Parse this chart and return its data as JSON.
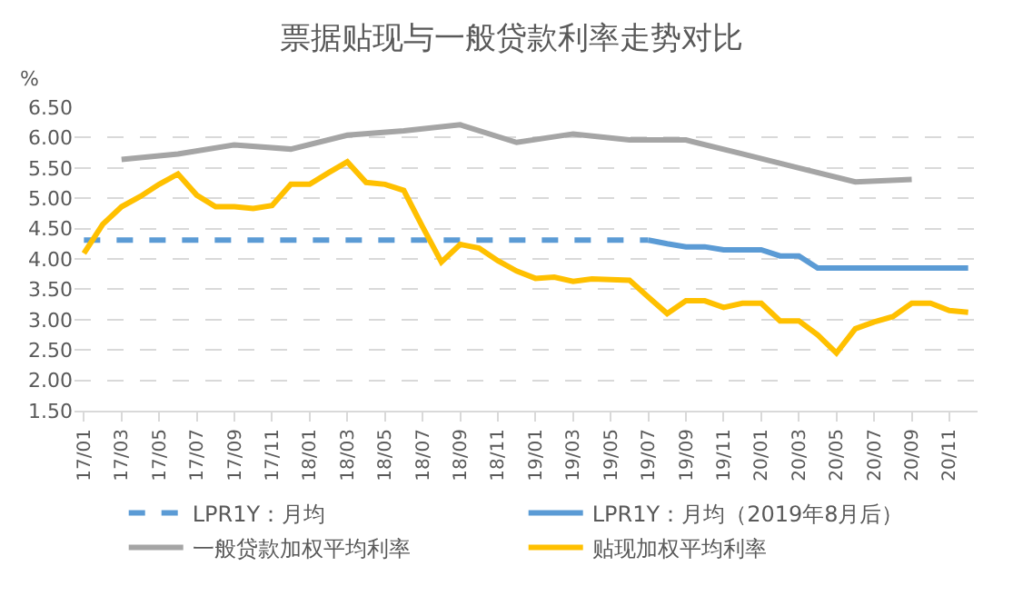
{
  "chart_data": {
    "type": "line",
    "title": "票据贴现与一般贷款利率走势对比",
    "ylabel": "%",
    "categories": [
      "17/01",
      null,
      "17/03",
      null,
      "17/05",
      null,
      "17/07",
      null,
      "17/09",
      null,
      "17/11",
      null,
      "18/01",
      null,
      "18/03",
      null,
      "18/05",
      null,
      "18/07",
      null,
      "18/09",
      null,
      "18/11",
      null,
      "19/01",
      null,
      "19/03",
      null,
      "19/05",
      null,
      "19/07",
      null,
      "19/09",
      null,
      "19/11",
      null,
      "20/01",
      null,
      "20/03",
      null,
      "20/05",
      null,
      "20/07",
      null,
      "20/09",
      null,
      "20/11",
      null
    ],
    "series": [
      {
        "name": "LPR1Y：月均",
        "color": "#5b9bd5",
        "line_style": "dashed",
        "values": [
          4.31,
          4.31,
          4.31,
          4.31,
          4.31,
          4.31,
          4.31,
          4.31,
          4.31,
          4.31,
          4.31,
          4.31,
          4.31,
          4.31,
          4.31,
          4.31,
          4.31,
          4.31,
          4.31,
          4.31,
          4.31,
          4.31,
          4.31,
          4.31,
          4.31,
          4.31,
          4.31,
          4.31,
          4.31,
          4.31,
          4.31,
          null,
          null,
          null,
          null,
          null,
          null,
          null,
          null,
          null,
          null,
          null,
          null,
          null,
          null,
          null,
          null,
          null
        ]
      },
      {
        "name": "LPR1Y：月均（2019年8月后）",
        "color": "#5b9bd5",
        "line_style": "solid",
        "values": [
          null,
          null,
          null,
          null,
          null,
          null,
          null,
          null,
          null,
          null,
          null,
          null,
          null,
          null,
          null,
          null,
          null,
          null,
          null,
          null,
          null,
          null,
          null,
          null,
          null,
          null,
          null,
          null,
          null,
          null,
          4.31,
          4.25,
          4.2,
          4.2,
          4.15,
          4.15,
          4.15,
          4.05,
          4.05,
          3.85,
          3.85,
          3.85,
          3.85,
          3.85,
          3.85,
          3.85,
          3.85,
          3.85
        ]
      },
      {
        "name": "一般贷款加权平均利率",
        "color": "#a5a5a5",
        "line_style": "solid",
        "values": [
          null,
          null,
          5.64,
          null,
          null,
          5.73,
          null,
          null,
          5.88,
          null,
          null,
          5.81,
          null,
          null,
          6.04,
          null,
          null,
          6.11,
          null,
          null,
          6.21,
          null,
          null,
          5.92,
          null,
          null,
          6.06,
          null,
          null,
          5.96,
          null,
          null,
          5.96,
          null,
          null,
          5.73,
          null,
          null,
          5.5,
          null,
          null,
          5.27,
          null,
          null,
          5.31,
          null,
          null,
          null
        ]
      },
      {
        "name": "贴现加权平均利率",
        "color": "#ffc000",
        "line_style": "solid",
        "values": [
          4.09,
          4.57,
          4.86,
          5.03,
          5.23,
          5.4,
          5.05,
          4.86,
          4.86,
          4.83,
          4.88,
          5.23,
          5.23,
          5.42,
          5.6,
          5.26,
          5.23,
          5.13,
          4.53,
          3.95,
          4.24,
          4.18,
          3.97,
          3.8,
          3.68,
          3.7,
          3.63,
          3.67,
          3.66,
          3.65,
          3.37,
          3.1,
          3.31,
          3.31,
          3.2,
          3.27,
          3.27,
          2.98,
          2.98,
          2.75,
          2.45,
          2.85,
          2.96,
          3.05,
          3.27,
          3.27,
          3.15,
          3.12
        ]
      }
    ],
    "ylim": [
      1.5,
      6.5
    ],
    "yticks": [
      {
        "value": 1.5,
        "label": "1.50"
      },
      {
        "value": 2,
        "label": "2.00"
      },
      {
        "value": 2.5,
        "label": "2.50"
      },
      {
        "value": 3,
        "label": "3.00"
      },
      {
        "value": 3.5,
        "label": "3.50"
      },
      {
        "value": 4,
        "label": "4.00"
      },
      {
        "value": 4.5,
        "label": "4.50"
      },
      {
        "value": 5,
        "label": "5.00"
      },
      {
        "value": 5.5,
        "label": "5.50"
      },
      {
        "value": 6,
        "label": "6.00"
      },
      {
        "value": 6.5,
        "label": "6.50"
      }
    ],
    "grid": "y",
    "legend": "bottom",
    "marker": "none"
  }
}
